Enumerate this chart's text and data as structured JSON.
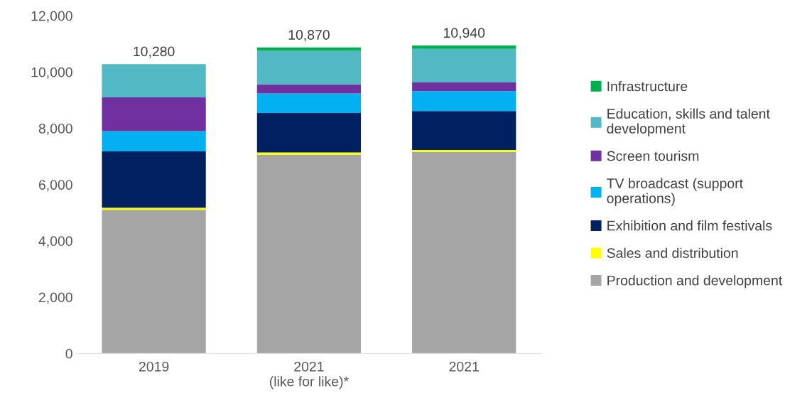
{
  "chart_data": {
    "type": "bar",
    "stacked": true,
    "categories": [
      "2019",
      "2021\n(like for like)*",
      "2021"
    ],
    "series": [
      {
        "name": "Production and development",
        "color": "#a5a5a5",
        "values": [
          5100,
          7060,
          7160
        ]
      },
      {
        "name": "Sales and distribution",
        "color": "#ffff00",
        "values": [
          80,
          80,
          70
        ]
      },
      {
        "name": "Exhibition and film festivals",
        "color": "#002060",
        "values": [
          2000,
          1400,
          1380
        ]
      },
      {
        "name": "TV broadcast (support\noperations)",
        "color": "#00b0f0",
        "values": [
          720,
          700,
          710
        ]
      },
      {
        "name": "Screen tourism",
        "color": "#7030a0",
        "values": [
          1200,
          320,
          310
        ]
      },
      {
        "name": "Education, skills and talent\ndevelopment",
        "color": "#52b8c3",
        "values": [
          1180,
          1190,
          1190
        ]
      },
      {
        "name": "Infrastructure",
        "color": "#00b050",
        "values": [
          null,
          120,
          120
        ]
      }
    ],
    "totals": [
      "10,280",
      "10,870",
      "10,940"
    ],
    "ylim": [
      0,
      12000
    ],
    "yticks": [
      {
        "value": 0,
        "label": "0"
      },
      {
        "value": 2000,
        "label": "2,000"
      },
      {
        "value": 4000,
        "label": "4,000"
      },
      {
        "value": 6000,
        "label": "6,000"
      },
      {
        "value": 8000,
        "label": "8,000"
      },
      {
        "value": 10000,
        "label": "10,000"
      },
      {
        "value": 12000,
        "label": "12,000"
      }
    ],
    "grid": false,
    "legend": "right"
  }
}
